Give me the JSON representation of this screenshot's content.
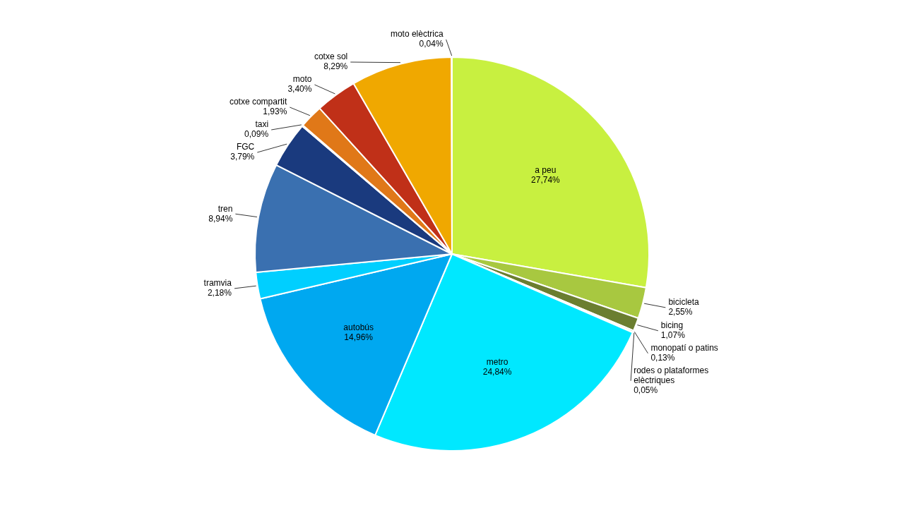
{
  "chart_data": {
    "type": "pie",
    "categories": [
      "a peu",
      "bicicleta",
      "bicing",
      "monopatí o patins",
      "rodes o plataformes\nelèctriques",
      "metro",
      "autobús",
      "tramvia",
      "tren",
      "FGC",
      "taxi",
      "cotxe compartit",
      "moto",
      "cotxe sol",
      "moto elèctrica"
    ],
    "values": [
      27.74,
      2.55,
      1.07,
      0.13,
      0.05,
      24.84,
      14.96,
      2.18,
      8.94,
      3.79,
      0.09,
      1.93,
      3.4,
      8.29,
      0.04
    ],
    "value_labels": [
      "27,74%",
      "2,55%",
      "1,07%",
      "0,13%",
      "0,05%",
      "24,84%",
      "14,96%",
      "2,18%",
      "8,94%",
      "3,79%",
      "0,09%",
      "1,93%",
      "3,40%",
      "8,29%",
      "0,04%"
    ],
    "colors": [
      "#c8f040",
      "#a8c840",
      "#6b7e30",
      "#8a9e38",
      "#4a5e20",
      "#00e8ff",
      "#00a8f0",
      "#00cfff",
      "#3a70b0",
      "#1a3a7e",
      "#0d1a30",
      "#e07818",
      "#c03018",
      "#f0a800",
      "#d0e870"
    ],
    "data_labels": true
  }
}
